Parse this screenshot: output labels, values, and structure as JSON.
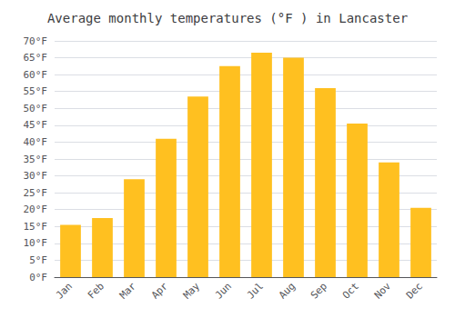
{
  "chart_data": {
    "type": "bar",
    "title": "Average monthly temperatures (°F ) in Lancaster",
    "categories": [
      "Jan",
      "Feb",
      "Mar",
      "Apr",
      "May",
      "Jun",
      "Jul",
      "Aug",
      "Sep",
      "Oct",
      "Nov",
      "Dec"
    ],
    "values": [
      15.5,
      17.5,
      29.0,
      41.0,
      53.5,
      62.5,
      66.5,
      65.0,
      56.0,
      45.5,
      34.0,
      20.5
    ],
    "color": "#FFC020",
    "ylim": [
      0,
      70
    ],
    "yticks": [
      {
        "value": 0,
        "label": "0°F"
      },
      {
        "value": 5,
        "label": "5°F"
      },
      {
        "value": 10,
        "label": "10°F"
      },
      {
        "value": 15,
        "label": "15°F"
      },
      {
        "value": 20,
        "label": "20°F"
      },
      {
        "value": 25,
        "label": "25°F"
      },
      {
        "value": 30,
        "label": "30°F"
      },
      {
        "value": 35,
        "label": "35°F"
      },
      {
        "value": 40,
        "label": "40°F"
      },
      {
        "value": 45,
        "label": "45°F"
      },
      {
        "value": 50,
        "label": "50°F"
      },
      {
        "value": 55,
        "label": "55°F"
      },
      {
        "value": 60,
        "label": "60°F"
      },
      {
        "value": 65,
        "label": "65°F"
      },
      {
        "value": 70,
        "label": "70°F"
      }
    ],
    "grid": true
  }
}
